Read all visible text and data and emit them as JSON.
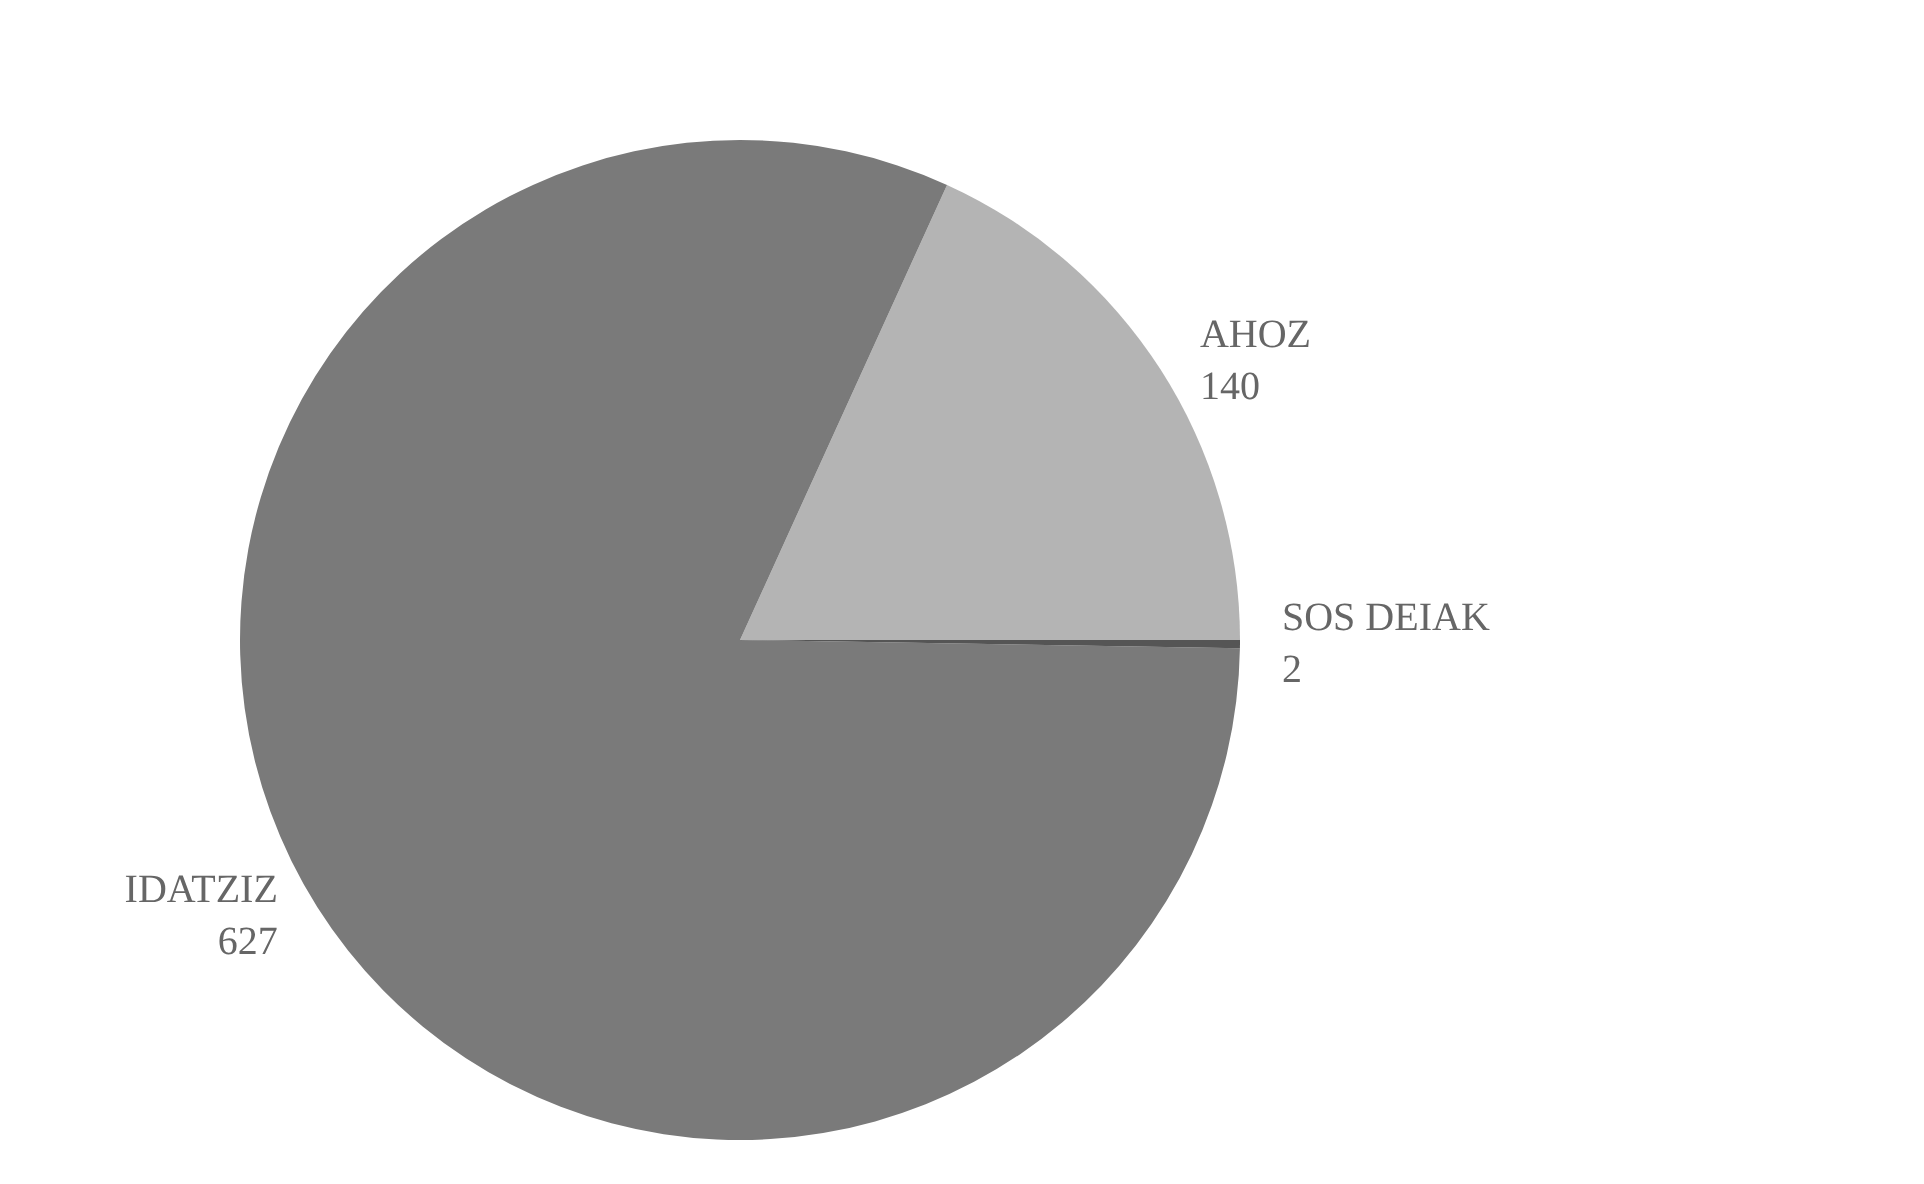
{
  "chart_data": {
    "type": "pie",
    "categories": [
      "AHOZ",
      "IDATZIZ",
      "SOS DEIAK"
    ],
    "values": [
      140,
      627,
      2
    ],
    "colors": [
      "#b4b4b4",
      "#7a7a7a",
      "#555555"
    ],
    "data_labels": true
  }
}
